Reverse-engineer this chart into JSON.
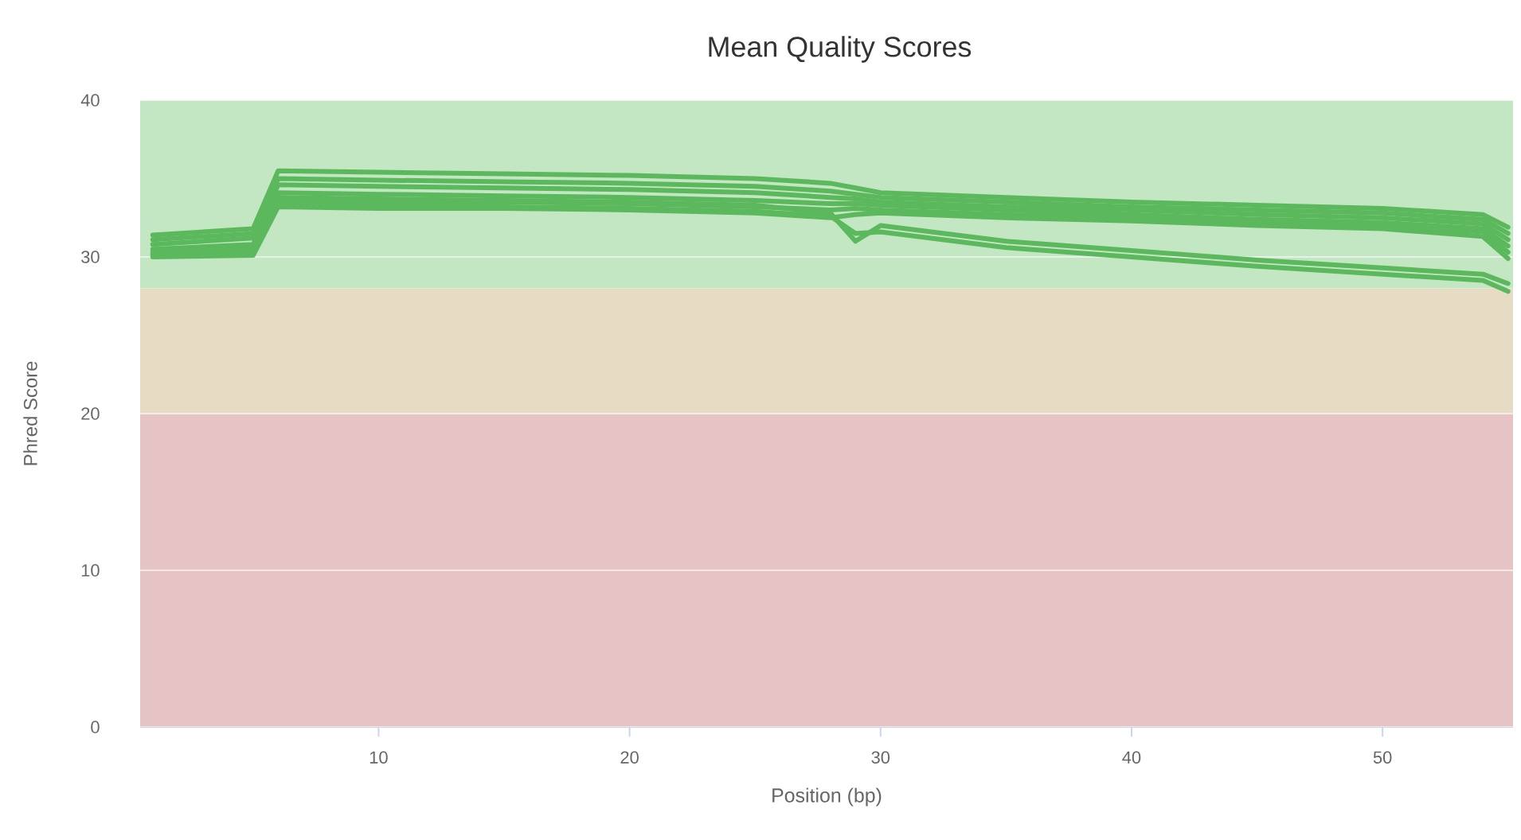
{
  "chart_data": {
    "type": "line",
    "title": "Mean Quality Scores",
    "xlabel": "Position (bp)",
    "ylabel": "Phred Score",
    "x": [
      1,
      5,
      6,
      10,
      15,
      20,
      25,
      28,
      29,
      30,
      35,
      40,
      45,
      50,
      54,
      55
    ],
    "series": [
      {
        "color": "#5cb85c",
        "values": [
          31.4,
          31.8,
          35.5,
          35.4,
          35.3,
          35.2,
          35.0,
          34.7,
          34.4,
          34.1,
          33.8,
          33.5,
          33.3,
          33.1,
          32.7,
          31.9
        ]
      },
      {
        "color": "#5cb85c",
        "values": [
          31.1,
          31.5,
          35.0,
          34.9,
          34.8,
          34.7,
          34.5,
          34.2,
          34.0,
          33.8,
          33.5,
          33.2,
          33.0,
          32.8,
          32.4,
          31.5
        ]
      },
      {
        "color": "#5cb85c",
        "values": [
          30.8,
          31.2,
          34.6,
          34.5,
          34.4,
          34.3,
          34.1,
          33.8,
          33.7,
          33.5,
          33.2,
          33.0,
          32.7,
          32.5,
          32.1,
          31.1
        ]
      },
      {
        "color": "#5cb85c",
        "values": [
          30.5,
          30.8,
          34.1,
          34.0,
          33.9,
          33.8,
          33.6,
          33.4,
          33.4,
          33.3,
          33.0,
          32.7,
          32.4,
          32.2,
          31.8,
          30.7
        ]
      },
      {
        "color": "#5cb85c",
        "values": [
          30.2,
          30.4,
          33.6,
          33.5,
          33.5,
          33.4,
          33.2,
          33.0,
          33.1,
          33.0,
          32.7,
          32.5,
          32.2,
          32.0,
          31.6,
          30.3
        ]
      },
      {
        "color": "#5cb85c",
        "values": [
          30.0,
          30.1,
          33.2,
          33.1,
          33.1,
          33.0,
          32.8,
          32.5,
          32.7,
          32.8,
          32.5,
          32.3,
          32.0,
          31.8,
          31.3,
          29.9
        ]
      },
      {
        "color": "#5cb85c",
        "values": [
          30.3,
          30.6,
          33.8,
          33.7,
          33.6,
          33.5,
          33.3,
          32.8,
          31.0,
          32.0,
          31.0,
          30.4,
          29.8,
          29.3,
          28.9,
          28.3
        ]
      },
      {
        "color": "#5cb85c",
        "values": [
          30.1,
          30.3,
          33.4,
          33.3,
          33.2,
          33.1,
          32.9,
          32.6,
          31.5,
          31.6,
          30.6,
          30.0,
          29.4,
          28.9,
          28.5,
          27.8
        ]
      }
    ],
    "xlim": [
      0.5,
      55.2
    ],
    "ylim": [
      0,
      40
    ],
    "xticks": [
      10,
      20,
      30,
      40,
      50
    ],
    "yticks": [
      0,
      10,
      20,
      30,
      40
    ],
    "bands": [
      {
        "axis": "y",
        "from": 28,
        "to": 40,
        "color": "#c3e6c3"
      },
      {
        "axis": "y",
        "from": 20,
        "to": 28,
        "color": "#e6dcc4"
      },
      {
        "axis": "y",
        "from": 0,
        "to": 20,
        "color": "#e6c3c4"
      }
    ],
    "grid": "y"
  }
}
